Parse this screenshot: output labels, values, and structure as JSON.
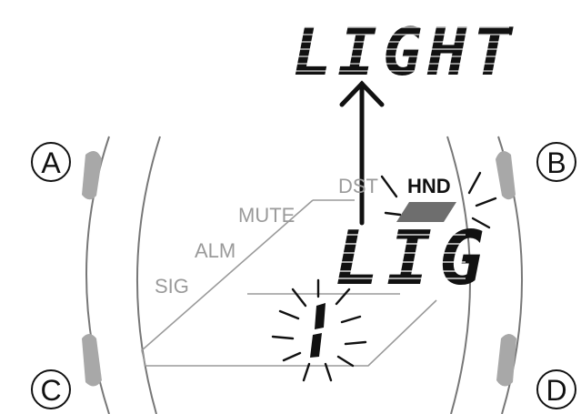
{
  "callout": {
    "text": "LIGHT"
  },
  "display": {
    "main_text": "LIG",
    "indicators": {
      "dst": "DST",
      "hnd": "HND"
    },
    "side_labels": {
      "mute": "MUTE",
      "alm": "ALM",
      "sig": "SIG"
    }
  },
  "buttons": {
    "a": "A",
    "b": "B",
    "c": "C",
    "d": "D"
  },
  "colors": {
    "ink": "#111111",
    "gray": "#9a9a9a",
    "button_fill": "#a8a8a8",
    "bezel": "#888888"
  }
}
